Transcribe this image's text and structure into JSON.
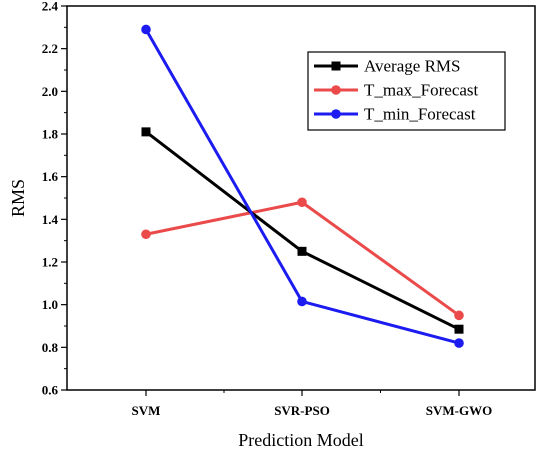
{
  "chart_data": {
    "type": "line",
    "categories": [
      "SVM",
      "SVR-PSO",
      "SVM-GWO"
    ],
    "series": [
      {
        "name": "Average RMS",
        "values": [
          1.81,
          1.25,
          0.885
        ],
        "color": "#000000",
        "marker": "square"
      },
      {
        "name": "T_max_Forecast",
        "values": [
          1.33,
          1.48,
          0.95
        ],
        "color": "#ea4a4a",
        "marker": "circle"
      },
      {
        "name": "T_min_Forecast",
        "values": [
          2.29,
          1.015,
          0.82
        ],
        "color": "#1c1cf0",
        "marker": "circle"
      }
    ],
    "xlabel": "Prediction Model",
    "ylabel": "RMS",
    "ylim": [
      0.6,
      2.4
    ],
    "yticks": [
      "0.6",
      "0.8",
      "1.0",
      "1.2",
      "1.4",
      "1.6",
      "1.8",
      "2.0",
      "2.2",
      "2.4"
    ],
    "grid": false,
    "legend_position": "top-right"
  }
}
